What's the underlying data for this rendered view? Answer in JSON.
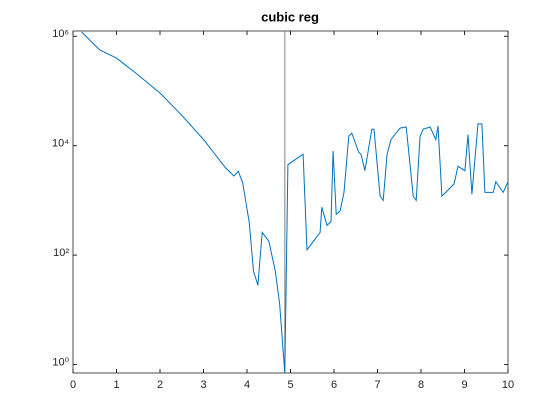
{
  "chart_data": {
    "type": "line",
    "title": "cubic reg",
    "log_y": true,
    "xlim": [
      0,
      10
    ],
    "ylim": [
      0.7,
      1250000
    ],
    "xticks": [
      0,
      1,
      2,
      3,
      4,
      5,
      6,
      7,
      8,
      9,
      10
    ],
    "yticks": [
      {
        "value": 1,
        "label": "10⁰"
      },
      {
        "value": 100,
        "label": "10²"
      },
      {
        "value": 10000,
        "label": "10⁴"
      },
      {
        "value": 1000000,
        "label": "10⁶"
      }
    ],
    "vline": 4.87,
    "vline_color": "#808080",
    "x": [
      0.2,
      0.5,
      0.62,
      1.0,
      1.5,
      2.0,
      2.5,
      3.0,
      3.5,
      3.7,
      3.8,
      3.9,
      4.05,
      4.15,
      4.25,
      4.35,
      4.5,
      4.65,
      4.75,
      4.87,
      4.94,
      5.29,
      5.38,
      5.68,
      5.72,
      5.84,
      5.93,
      5.98,
      6.05,
      6.14,
      6.23,
      6.34,
      6.41,
      6.57,
      6.62,
      6.71,
      6.87,
      6.92,
      7.06,
      7.13,
      7.22,
      7.31,
      7.52,
      7.66,
      7.82,
      7.89,
      7.98,
      8.05,
      8.21,
      8.34,
      8.39,
      8.48,
      8.57,
      8.76,
      8.85,
      9.01,
      9.08,
      9.17,
      9.31,
      9.4,
      9.47,
      9.66,
      9.72,
      9.89,
      10.0
    ],
    "series": [
      {
        "name": "cubic reg",
        "color": "#0072bd",
        "values": [
          1200000,
          690000,
          560000,
          400000,
          195000,
          92000,
          36000,
          13000,
          4000,
          2800,
          3400,
          2100,
          400,
          51,
          28,
          260,
          180,
          51,
          13,
          0.7,
          4500,
          7000,
          125,
          260,
          750,
          350,
          410,
          8000,
          560,
          640,
          1400,
          15000,
          17000,
          7500,
          7000,
          3500,
          20000,
          20000,
          1200,
          1000,
          7000,
          13000,
          21000,
          22000,
          1200,
          1000,
          15000,
          20000,
          22000,
          13000,
          23000,
          1200,
          1400,
          2000,
          4200,
          3500,
          16000,
          1300,
          25000,
          25000,
          1400,
          1400,
          2200,
          1400,
          2200
        ]
      }
    ]
  }
}
